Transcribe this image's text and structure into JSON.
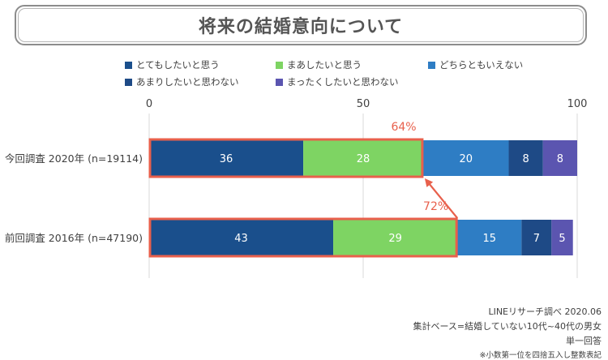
{
  "title": "将来の結婚意向について",
  "chart_data": {
    "type": "bar",
    "orientation": "horizontal",
    "stacked": true,
    "xlim": [
      0,
      100
    ],
    "x_ticks": [
      "0",
      "50",
      "100"
    ],
    "categories": [
      "今回調査 2020年 (n=19114)",
      "前回調査 2016年 (n=47190)"
    ],
    "series": [
      {
        "name": "とてもしたいと思う",
        "color": "#1a4f8c",
        "values": [
          36,
          43
        ]
      },
      {
        "name": "まあしたいと思う",
        "color": "#7ed463",
        "values": [
          28,
          29
        ]
      },
      {
        "name": "どちらともいえない",
        "color": "#2e7dc4",
        "values": [
          20,
          15
        ]
      },
      {
        "name": "あまりしたいと思わない",
        "color": "#1e4a86",
        "values": [
          8,
          7
        ]
      },
      {
        "name": "まったくしたいと思わない",
        "color": "#5b55b0",
        "values": [
          8,
          5
        ]
      }
    ],
    "data_labels": [
      [
        "36",
        "28",
        "20",
        "8",
        "8"
      ],
      [
        "43",
        "29",
        "15",
        "7",
        "5"
      ]
    ],
    "annotations": [
      {
        "text": "64%",
        "category_index": 0,
        "covers_series": [
          0,
          1
        ]
      },
      {
        "text": "72%",
        "category_index": 1,
        "covers_series": [
          0,
          1
        ]
      }
    ],
    "highlight_color": "#e8604c",
    "grid": true
  },
  "footnotes": [
    "LINEリサーチ調べ 2020.06",
    "集計ベース=結婚していない10代~40代の男女",
    "単一回答",
    "※小数第一位を四捨五入し整数表記"
  ]
}
